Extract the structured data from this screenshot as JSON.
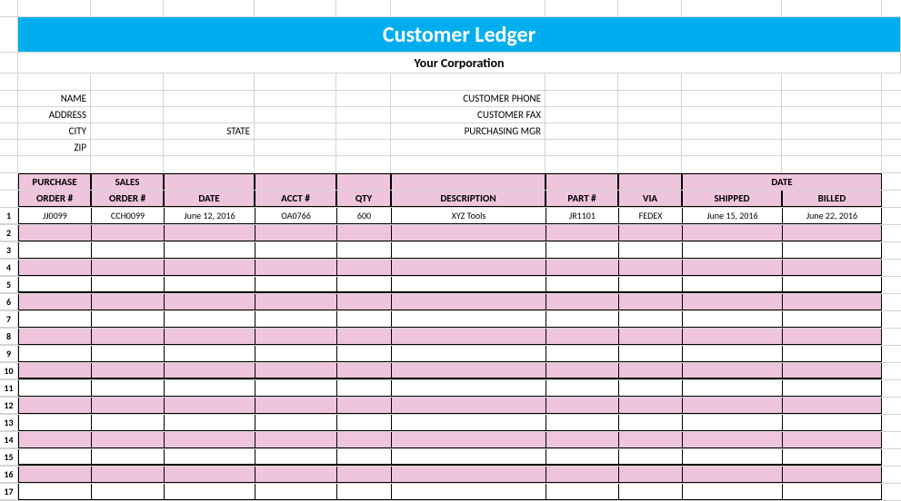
{
  "banner": {
    "title": "Customer Ledger"
  },
  "corporation": "Your Corporation",
  "info_labels": {
    "name": "NAME",
    "address": "ADDRESS",
    "city": "CITY",
    "state": "STATE",
    "zip": "ZIP",
    "customer_phone": "CUSTOMER PHONE",
    "customer_fax": "CUSTOMER FAX",
    "purchasing_mgr": "PURCHASING MGR"
  },
  "headers": {
    "purchase_order_1": "PURCHASE",
    "purchase_order_2": "ORDER #",
    "sales_order_1": "SALES",
    "sales_order_2": "ORDER #",
    "date": "DATE",
    "acct": "ACCT #",
    "qty": "QTY",
    "description": "DESCRIPTION",
    "part": "PART #",
    "via": "VIA",
    "date_span": "DATE",
    "shipped": "SHIPPED",
    "billed": "BILLED"
  },
  "rows": [
    {
      "n": "1",
      "po": "JJ0099",
      "so": "CCH0099",
      "date": "June 12, 2016",
      "acct": "OA0766",
      "qty": "600",
      "desc": "XYZ Tools",
      "part": "JR1101",
      "via": "FEDEX",
      "shipped": "June 15, 2016",
      "billed": "June 22, 2016"
    },
    {
      "n": "2"
    },
    {
      "n": "3"
    },
    {
      "n": "4"
    },
    {
      "n": "5"
    },
    {
      "n": "6"
    },
    {
      "n": "7"
    },
    {
      "n": "8"
    },
    {
      "n": "9"
    },
    {
      "n": "10"
    },
    {
      "n": "11"
    },
    {
      "n": "12"
    },
    {
      "n": "13"
    },
    {
      "n": "14"
    },
    {
      "n": "15"
    },
    {
      "n": "16"
    },
    {
      "n": "17"
    }
  ],
  "colors": {
    "banner_bg": "#00aeef",
    "banner_text": "#ffffff",
    "header_bg": "#efc5dd",
    "pink_row_bg": "#efc5dd",
    "grid_line": "#d4d4d4",
    "border": "#000000",
    "white": "#ffffff"
  }
}
